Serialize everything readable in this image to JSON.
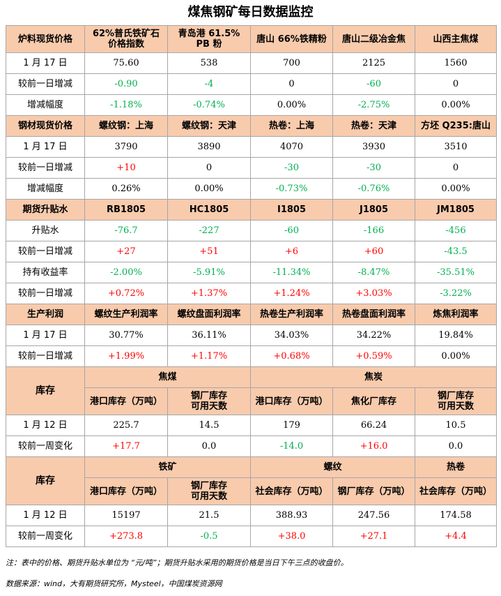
{
  "title": "煤焦钢矿每日数据监控",
  "colors": {
    "header_bg": "#f8cbad",
    "up": "#ff0000",
    "down": "#00b050"
  },
  "s1": {
    "head": [
      "炉料现货价格",
      "62%普氏铁矿石\n价格指数",
      "青岛港 61.5%\nPB 粉",
      "唐山 66%铁精粉",
      "唐山二级冶金焦",
      "山西主焦煤"
    ],
    "rows": [
      [
        "1 月 17 日",
        "75.60",
        "538",
        "700",
        "2125",
        "1560"
      ],
      [
        "较前一日增减",
        "-0.90",
        "-4",
        "0",
        "-60",
        "0"
      ],
      [
        "增减幅度",
        "-1.18%",
        "-0.74%",
        "0.00%",
        "-2.75%",
        "0.00%"
      ]
    ]
  },
  "s2": {
    "head": [
      "钢材现货价格",
      "螺纹钢：上海",
      "螺纹钢：天津",
      "热卷：上海",
      "热卷：天津",
      "方坯 Q235:唐山"
    ],
    "rows": [
      [
        "1 月 17 日",
        "3790",
        "3890",
        "4070",
        "3930",
        "3510"
      ],
      [
        "较前一日增减",
        "+10",
        "0",
        "-30",
        "-30",
        "0"
      ],
      [
        "增减幅度",
        "0.26%",
        "0.00%",
        "-0.73%",
        "-0.76%",
        "0.00%"
      ]
    ]
  },
  "s3": {
    "head": [
      "期货升贴水",
      "RB1805",
      "HC1805",
      "I1805",
      "J1805",
      "JM1805"
    ],
    "rows": [
      [
        "升贴水",
        "-76.7",
        "-227",
        "-60",
        "-166",
        "-456"
      ],
      [
        "较前一日增减",
        "+27",
        "+51",
        "+6",
        "+60",
        "-43.5"
      ],
      [
        "持有收益率",
        "-2.00%",
        "-5.91%",
        "-11.34%",
        "-8.47%",
        "-35.51%"
      ],
      [
        "较前一日增减",
        "+0.72%",
        "+1.37%",
        "+1.24%",
        "+3.03%",
        "-3.22%"
      ]
    ]
  },
  "s4": {
    "head": [
      "生产利润",
      "螺纹生产利润率",
      "螺纹盘面利润率",
      "热卷生产利润率",
      "热卷盘面利润率",
      "炼焦利润率"
    ],
    "rows": [
      [
        "1 月 17 日",
        "30.77%",
        "36.11%",
        "34.03%",
        "34.22%",
        "19.84%"
      ],
      [
        "较前一日增减",
        "+1.99%",
        "+1.17%",
        "+0.68%",
        "+0.59%",
        "0.00%"
      ]
    ]
  },
  "s5": {
    "label": "库存",
    "groups": [
      "焦煤",
      "焦炭"
    ],
    "sub": [
      "港口库存（万吨）",
      "钢厂库存\n可用天数",
      "港口库存（万吨）",
      "焦化厂库存",
      "钢厂库存\n可用天数"
    ],
    "rows": [
      [
        "1 月 12 日",
        "225.7",
        "14.5",
        "179",
        "66.24",
        "10.5"
      ],
      [
        "较前一周变化",
        "+17.7",
        "0.0",
        "-14.0",
        "+16.0",
        "0.0"
      ]
    ]
  },
  "s6": {
    "label": "库存",
    "groups": [
      "铁矿",
      "螺纹",
      "热卷"
    ],
    "sub": [
      "港口库存（万吨）",
      "钢厂库存\n可用天数",
      "社会库存（万吨）",
      "钢厂库存（万吨）",
      "社会库存（万吨）"
    ],
    "rows": [
      [
        "1 月 12 日",
        "15197",
        "21.5",
        "388.93",
        "247.56",
        "174.58"
      ],
      [
        "较前一周变化",
        "+273.8",
        "-0.5",
        "+38.0",
        "+27.1",
        "+4.4"
      ]
    ]
  },
  "note": "注：表中的价格、期货升贴水单位为 “元/吨”；期货升贴水采用的期货价格是当日下午三点的收盘价。",
  "source": "数据来源：wind，大有期货研究所，Mysteel，中国煤炭资源网"
}
